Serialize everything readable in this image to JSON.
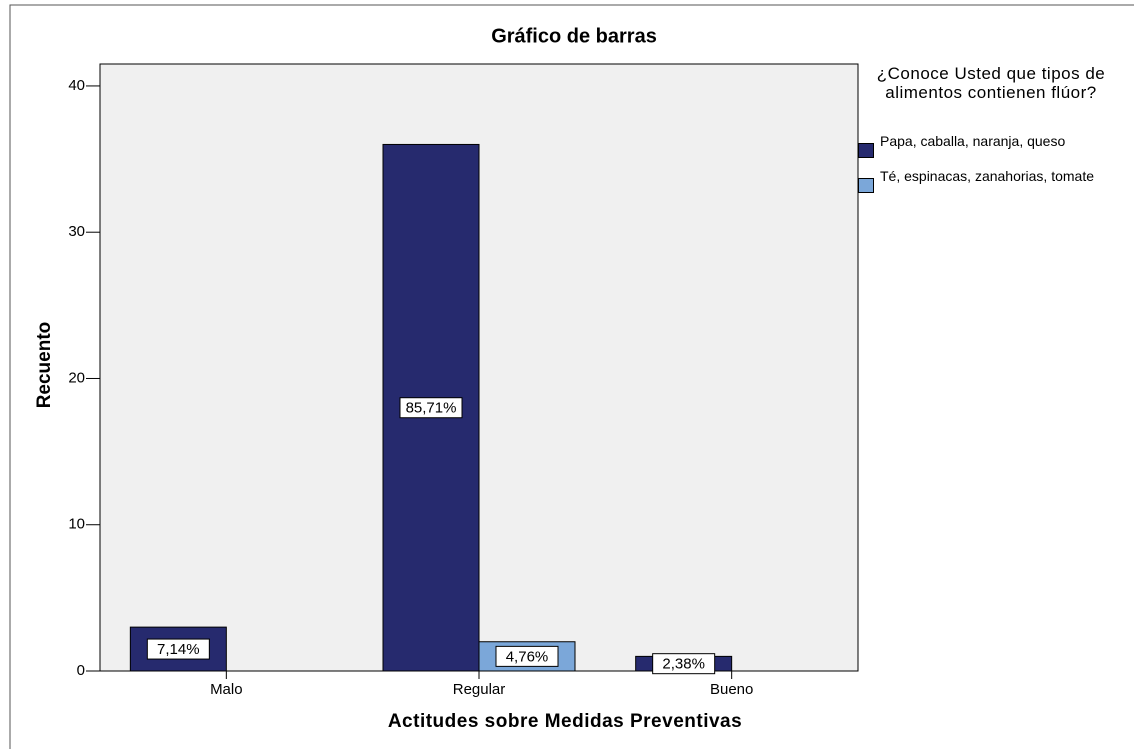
{
  "chart_data": {
    "type": "bar",
    "title": "Gráfico de barras",
    "x_label": "Actitudes sobre Medidas Preventivas",
    "y_label": "Recuento",
    "legend_title": "¿Conoce Usted que tipos de alimentos contienen flúor?",
    "categories": [
      "Malo",
      "Regular",
      "Bueno"
    ],
    "series": [
      {
        "name": "Papa, caballa, naranja, queso",
        "color": "#262a6e",
        "values": [
          3,
          36,
          1
        ],
        "percent_labels": [
          "7,14%",
          "85,71%",
          "2,38%"
        ]
      },
      {
        "name": "Té, espinacas, zanahorias, tomate",
        "color": "#7ba7d9",
        "values": [
          0,
          2,
          0
        ],
        "percent_labels": [
          null,
          "4,76%",
          null
        ]
      }
    ],
    "ylim": [
      0,
      41.5
    ],
    "yticks": [
      0,
      10,
      20,
      30,
      40
    ],
    "grid": false,
    "legend": "right"
  }
}
